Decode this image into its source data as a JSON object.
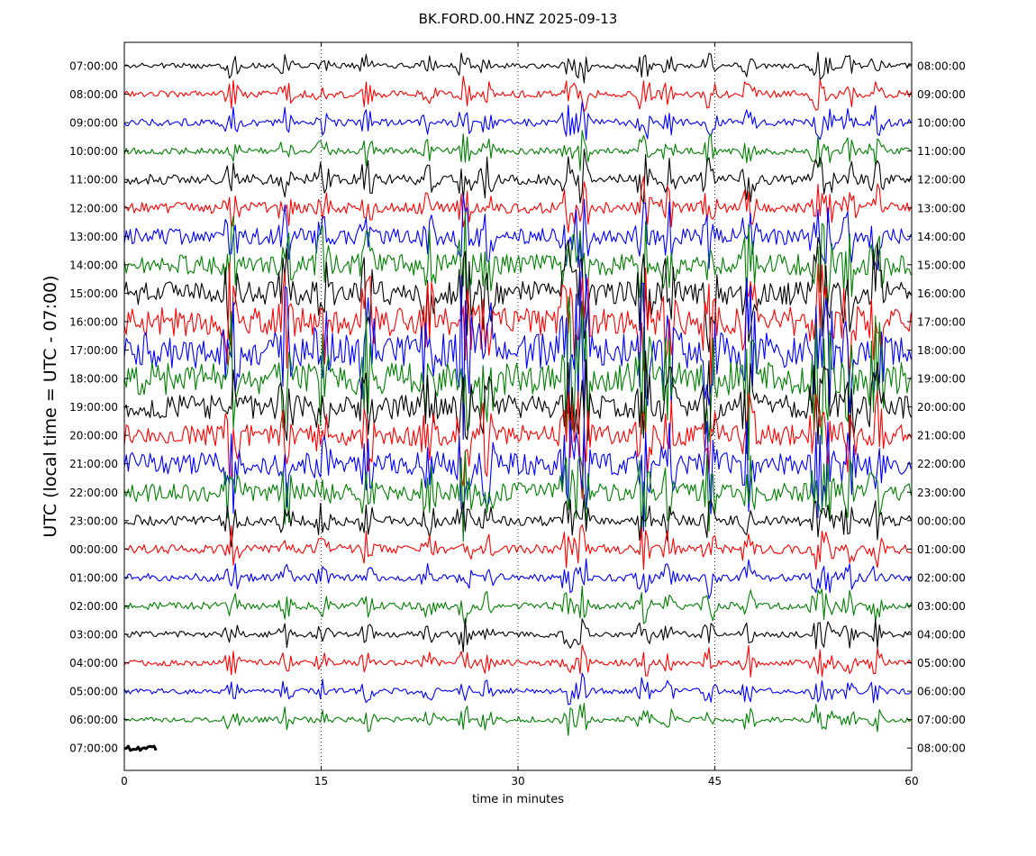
{
  "chart_data": {
    "type": "line",
    "title": "BK.FORD.00.HNZ 2025-09-13",
    "xlabel": "time in minutes",
    "ylabel": "UTC (local time = UTC - 07:00)",
    "xlim": [
      0,
      60
    ],
    "x_ticks": [
      0,
      15,
      30,
      45,
      60
    ],
    "vertical_grid": "dotted at 15, 30, 45",
    "line_colors": [
      "#000000",
      "#ff0000",
      "#0000ff",
      "#008000"
    ],
    "left_labels": [
      "07:00:00",
      "08:00:00",
      "09:00:00",
      "10:00:00",
      "11:00:00",
      "12:00:00",
      "13:00:00",
      "14:00:00",
      "15:00:00",
      "16:00:00",
      "17:00:00",
      "18:00:00",
      "19:00:00",
      "20:00:00",
      "21:00:00",
      "22:00:00",
      "23:00:00",
      "00:00:00",
      "01:00:00",
      "02:00:00",
      "03:00:00",
      "04:00:00",
      "05:00:00",
      "06:00:00",
      "07:00:00"
    ],
    "right_labels": [
      "08:00:00",
      "09:00:00",
      "10:00:00",
      "11:00:00",
      "12:00:00",
      "13:00:00",
      "14:00:00",
      "15:00:00",
      "16:00:00",
      "17:00:00",
      "18:00:00",
      "19:00:00",
      "20:00:00",
      "21:00:00",
      "22:00:00",
      "23:00:00",
      "00:00:00",
      "01:00:00",
      "02:00:00",
      "03:00:00",
      "04:00:00",
      "05:00:00",
      "06:00:00",
      "07:00:00",
      "08:00:00"
    ],
    "activity": [
      0.15,
      0.3,
      0.3,
      0.25,
      0.55,
      0.6,
      1.0,
      1.4,
      1.6,
      2.0,
      2.6,
      2.3,
      1.6,
      1.4,
      1.5,
      1.2,
      0.55,
      0.45,
      0.35,
      0.3,
      0.2,
      0.2,
      0.18,
      0.18,
      0.15
    ],
    "last_trace_end_minute": 2.5,
    "events": [
      {
        "minute": 8.2,
        "amplitude": 9
      },
      {
        "minute": 12.3,
        "amplitude": 7
      },
      {
        "minute": 15.1,
        "amplitude": 6
      },
      {
        "minute": 18.5,
        "amplitude": 8
      },
      {
        "minute": 23.2,
        "amplitude": 6
      },
      {
        "minute": 25.9,
        "amplitude": 10
      },
      {
        "minute": 27.6,
        "amplitude": 7
      },
      {
        "minute": 33.8,
        "amplitude": 9
      },
      {
        "minute": 34.9,
        "amplitude": 12
      },
      {
        "minute": 39.6,
        "amplitude": 11
      },
      {
        "minute": 41.5,
        "amplitude": 7
      },
      {
        "minute": 44.6,
        "amplitude": 9
      },
      {
        "minute": 47.6,
        "amplitude": 9
      },
      {
        "minute": 52.8,
        "amplitude": 9
      },
      {
        "minute": 53.6,
        "amplitude": 7
      },
      {
        "minute": 55.2,
        "amplitude": 7
      },
      {
        "minute": 57.3,
        "amplitude": 8
      }
    ]
  }
}
